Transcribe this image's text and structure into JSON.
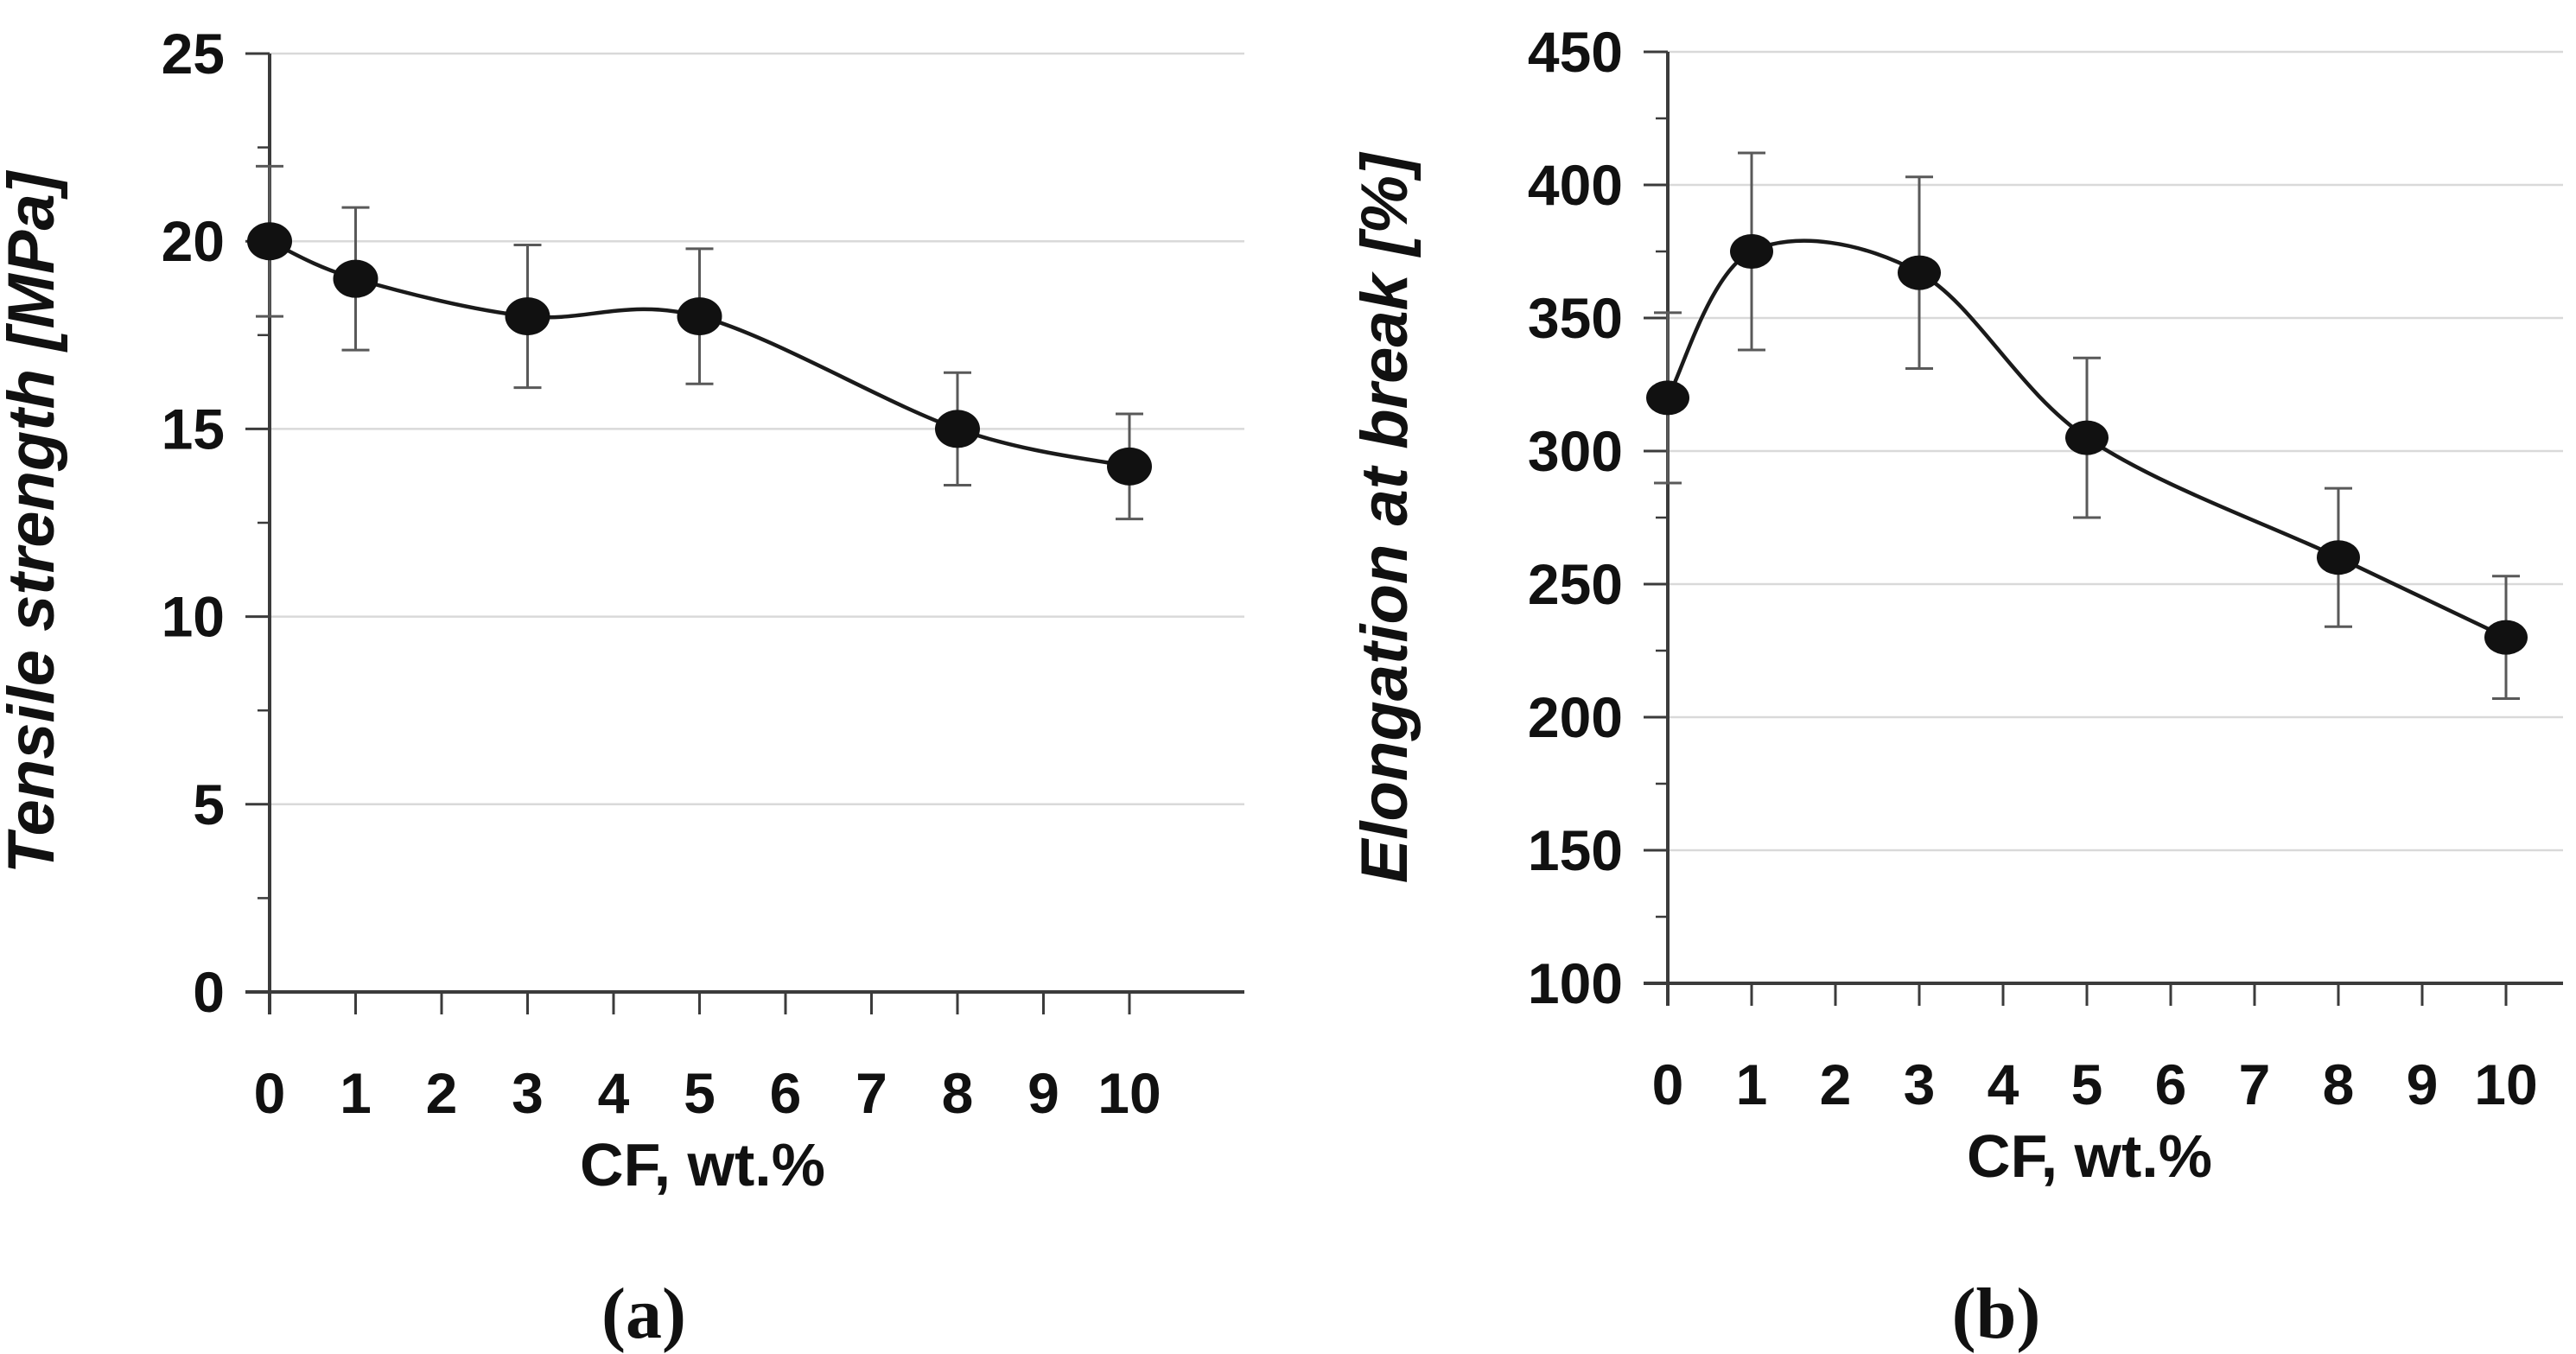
{
  "figure": {
    "background": "#ffffff"
  },
  "style": {
    "point_color": "#111111",
    "line_color": "#1a1a1a",
    "grid_color": "#d9d9d9",
    "axis_color": "#3b3b3b",
    "error_bar_color": "#595959",
    "text_color": "#111111"
  },
  "chart_data": [
    {
      "type": "line",
      "caption": "(a)",
      "xlabel": "CF, wt.%",
      "ylabel": "Tensile strength [MPa]",
      "marker": "filled-circle",
      "legend": "none",
      "grid": "horizontal",
      "x": [
        0,
        1,
        3,
        5,
        8,
        10
      ],
      "y": [
        20,
        19,
        18,
        18,
        15,
        14
      ],
      "yerr": [
        2,
        1.9,
        1.9,
        1.8,
        1.5,
        1.4
      ],
      "xticks": [
        0,
        1,
        2,
        3,
        4,
        5,
        6,
        7,
        8,
        9,
        10
      ],
      "yticks": [
        0,
        5,
        10,
        15,
        20,
        25
      ],
      "ylim": [
        0,
        25
      ],
      "xlim": [
        0,
        10
      ]
    },
    {
      "type": "line",
      "caption": "(b)",
      "xlabel": "CF, wt.%",
      "ylabel": "Elongation at break [%]",
      "marker": "filled-circle",
      "legend": "none",
      "grid": "horizontal",
      "x": [
        0,
        1,
        3,
        5,
        8,
        10
      ],
      "y": [
        320,
        375,
        367,
        305,
        260,
        230
      ],
      "yerr": [
        32,
        37,
        36,
        30,
        26,
        23
      ],
      "xticks": [
        0,
        1,
        2,
        3,
        4,
        5,
        6,
        7,
        8,
        9,
        10
      ],
      "yticks": [
        100,
        150,
        200,
        250,
        300,
        350,
        400,
        450
      ],
      "ylim": [
        100,
        450
      ],
      "xlim": [
        0,
        10
      ]
    }
  ]
}
